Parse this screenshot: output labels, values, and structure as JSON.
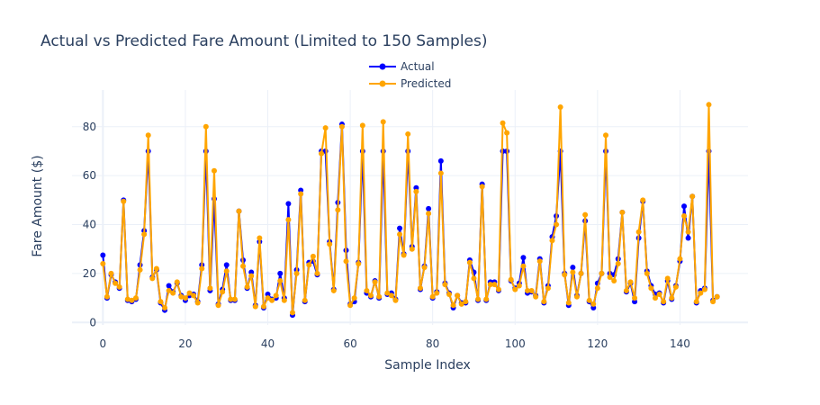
{
  "chart_data": {
    "type": "line",
    "title": "Actual vs Predicted Fare Amount (Limited to 150 Samples)",
    "xlabel": "Sample Index",
    "ylabel": "Fare Amount ($)",
    "xlim": [
      -7.5,
      156.5
    ],
    "ylim": [
      -1,
      95
    ],
    "xticks": [
      0,
      20,
      40,
      60,
      80,
      100,
      120,
      140
    ],
    "yticks": [
      0,
      20,
      40,
      60,
      80
    ],
    "legend_position": "top-center",
    "grid": true,
    "series": [
      {
        "name": "Actual",
        "color": "#0000ff",
        "values": [
          27.5,
          10,
          19.5,
          16.5,
          14,
          50,
          9,
          8.5,
          9.5,
          23.5,
          37.5,
          70,
          18.5,
          21.5,
          8,
          5,
          15,
          12.5,
          16,
          11,
          9,
          11,
          11.5,
          8.5,
          23.5,
          70,
          13,
          50.5,
          7.5,
          13.5,
          23.5,
          9,
          9,
          45.5,
          25.5,
          14,
          20.5,
          7,
          33,
          6,
          11.5,
          9.5,
          10,
          20,
          10,
          48.5,
          3,
          21.5,
          54,
          8.5,
          24.5,
          25,
          19.5,
          70,
          70,
          33,
          13.5,
          49,
          81,
          29.5,
          7.5,
          8.5,
          24.5,
          70,
          12,
          10.5,
          17,
          10,
          70,
          11.5,
          12,
          9.5,
          38.5,
          28,
          70,
          31,
          55,
          13.5,
          23,
          46.5,
          10,
          12.5,
          66,
          16,
          12,
          6,
          11,
          8,
          8,
          25.5,
          20.5,
          9,
          56.5,
          9,
          16.5,
          16.5,
          13,
          70,
          70,
          17,
          14,
          16,
          26.5,
          12,
          12.5,
          11,
          26,
          8,
          15,
          35,
          43.5,
          70,
          20,
          7,
          22.5,
          11,
          20,
          41.5,
          8.5,
          6,
          16,
          20,
          70,
          20,
          19.5,
          26,
          45,
          12.5,
          16,
          8.5,
          34.5,
          49.5,
          21,
          15,
          11.5,
          12,
          8,
          17,
          9.5,
          15,
          25,
          47.5,
          34.5,
          51.5,
          8,
          13,
          14,
          70,
          9,
          10.5
        ]
      },
      {
        "name": "Predicted",
        "color": "#ffa500",
        "values": [
          24,
          10.5,
          20,
          16,
          14.5,
          49.5,
          9.5,
          9,
          10,
          21.5,
          36,
          76.5,
          18,
          22,
          8.5,
          6,
          13,
          12,
          16.5,
          10.5,
          10,
          12,
          11,
          8,
          22,
          80,
          14,
          62,
          7,
          12.5,
          21,
          9.5,
          9.5,
          45.5,
          23,
          14.5,
          19,
          6.5,
          34.5,
          6.5,
          10,
          9,
          11,
          17,
          9,
          42,
          4,
          20,
          52.5,
          9,
          23.5,
          27,
          20,
          69,
          79.5,
          32,
          13,
          46,
          80,
          25,
          7,
          10,
          24,
          80.5,
          13,
          11,
          16.5,
          10.5,
          82,
          12,
          11,
          9,
          36,
          27.5,
          77,
          30,
          53.5,
          14,
          22.5,
          44.5,
          10.5,
          12,
          61,
          15.5,
          11.5,
          7,
          11,
          7.5,
          8.5,
          24.5,
          18,
          9.5,
          55.5,
          9.5,
          15.5,
          15.5,
          13.5,
          81.5,
          77.5,
          17.5,
          13.5,
          15,
          23,
          13,
          13,
          10.5,
          25,
          8.5,
          14,
          33.5,
          40,
          88,
          19.5,
          8,
          20.5,
          10.5,
          20,
          44,
          9,
          7.5,
          14,
          20,
          76.5,
          18.5,
          17,
          24,
          45,
          13,
          16.5,
          10,
          37,
          50,
          20,
          14,
          10,
          11.5,
          8.5,
          18,
          10,
          14.5,
          26,
          43.5,
          37,
          51.5,
          8.5,
          12,
          13.5,
          89,
          8.5,
          10.5
        ]
      }
    ]
  }
}
